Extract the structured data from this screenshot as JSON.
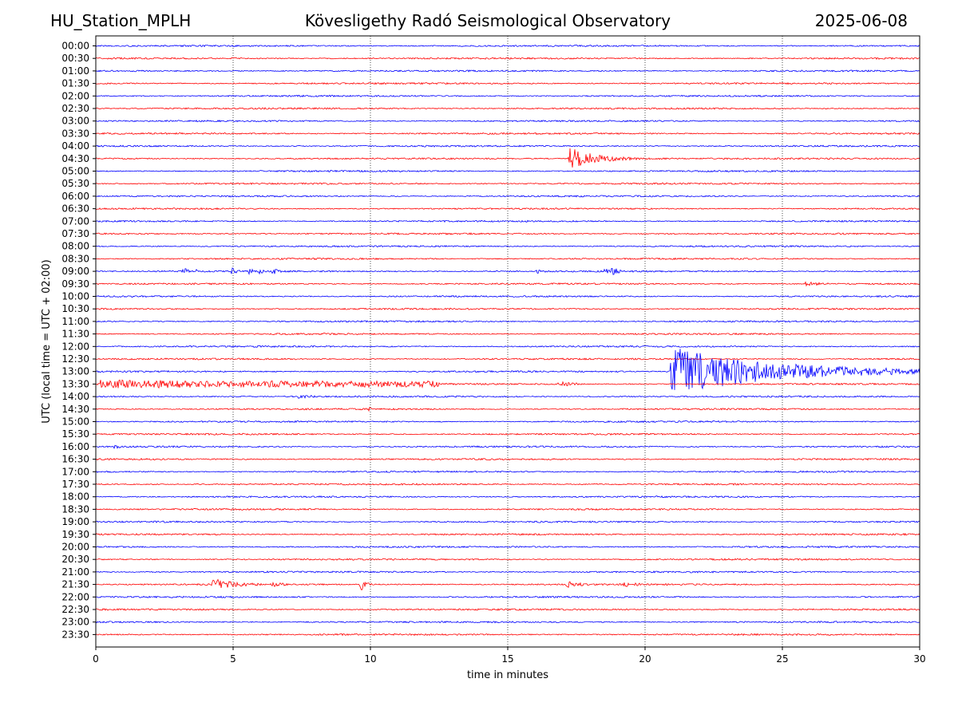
{
  "header": {
    "station": "HU_Station_MPLH",
    "title": "Kövesligethy Radó Seismological Observatory",
    "date": "2025-06-08"
  },
  "chart_data": {
    "type": "line",
    "subtype": "helicorder",
    "xlabel": "time in minutes",
    "ylabel": "UTC (local time = UTC + 02:00)",
    "xlim": [
      0,
      30
    ],
    "xticks": [
      0,
      5,
      10,
      15,
      20,
      25,
      30
    ],
    "grid_x": true,
    "trace_colors": [
      "#0000ff",
      "#ff0000"
    ],
    "rows": [
      {
        "label": "00:00",
        "events": []
      },
      {
        "label": "00:30",
        "events": []
      },
      {
        "label": "01:00",
        "events": []
      },
      {
        "label": "01:30",
        "events": []
      },
      {
        "label": "02:00",
        "events": []
      },
      {
        "label": "02:30",
        "events": []
      },
      {
        "label": "03:00",
        "events": []
      },
      {
        "label": "03:30",
        "events": []
      },
      {
        "label": "04:00",
        "events": []
      },
      {
        "label": "04:30",
        "events": [
          {
            "t": 17.2,
            "dur": 3.8,
            "amp": 1.9,
            "decay": 0.9
          }
        ]
      },
      {
        "label": "05:00",
        "events": []
      },
      {
        "label": "05:30",
        "events": []
      },
      {
        "label": "06:00",
        "events": []
      },
      {
        "label": "06:30",
        "events": []
      },
      {
        "label": "07:00",
        "events": []
      },
      {
        "label": "07:30",
        "events": []
      },
      {
        "label": "08:00",
        "events": []
      },
      {
        "label": "08:30",
        "events": []
      },
      {
        "label": "09:00",
        "events": [
          {
            "t": 3.15,
            "dur": 0.3,
            "amp": 0.9,
            "decay": 0.12
          },
          {
            "t": 3.55,
            "dur": 0.25,
            "amp": 0.6,
            "decay": 0.1
          },
          {
            "t": 4.9,
            "dur": 0.35,
            "amp": 0.9,
            "decay": 0.12
          },
          {
            "t": 5.55,
            "dur": 0.25,
            "amp": 0.8,
            "decay": 0.1
          },
          {
            "t": 5.9,
            "dur": 0.25,
            "amp": 0.8,
            "decay": 0.1
          },
          {
            "t": 6.4,
            "dur": 0.35,
            "amp": 0.9,
            "decay": 0.12
          },
          {
            "t": 16.0,
            "dur": 0.4,
            "amp": 0.7,
            "decay": 0.12
          },
          {
            "t": 18.5,
            "dur": 0.35,
            "amp": 0.9,
            "decay": 0.12
          },
          {
            "t": 18.75,
            "dur": 0.35,
            "amp": 1.6,
            "decay": 0.15
          }
        ]
      },
      {
        "label": "09:30",
        "events": [
          {
            "t": 25.8,
            "dur": 0.9,
            "amp": 0.35,
            "decay": 0.5
          }
        ]
      },
      {
        "label": "10:00",
        "events": []
      },
      {
        "label": "10:30",
        "events": []
      },
      {
        "label": "11:00",
        "events": []
      },
      {
        "label": "11:30",
        "events": []
      },
      {
        "label": "12:00",
        "events": []
      },
      {
        "label": "12:30",
        "events": []
      },
      {
        "label": "13:00",
        "events": [
          {
            "t": 20.9,
            "dur": 9.1,
            "amp": 4.0,
            "decay": 3.5
          }
        ]
      },
      {
        "label": "13:30",
        "events": [
          {
            "t": 0.0,
            "dur": 12.5,
            "amp": 0.55,
            "decay": 30.0
          },
          {
            "t": 16.8,
            "dur": 0.9,
            "amp": 0.4,
            "decay": 0.5
          }
        ]
      },
      {
        "label": "14:00",
        "events": [
          {
            "t": 7.3,
            "dur": 0.7,
            "amp": 0.3,
            "decay": 0.5
          }
        ]
      },
      {
        "label": "14:30",
        "events": [
          {
            "t": 9.9,
            "dur": 0.2,
            "amp": 0.5,
            "decay": 0.08
          }
        ]
      },
      {
        "label": "15:00",
        "events": []
      },
      {
        "label": "15:30",
        "events": []
      },
      {
        "label": "16:00",
        "events": [
          {
            "t": 0.5,
            "dur": 0.5,
            "amp": 0.3,
            "decay": 0.3
          }
        ]
      },
      {
        "label": "16:30",
        "events": []
      },
      {
        "label": "17:00",
        "events": []
      },
      {
        "label": "17:30",
        "events": []
      },
      {
        "label": "18:00",
        "events": []
      },
      {
        "label": "18:30",
        "events": []
      },
      {
        "label": "19:00",
        "events": []
      },
      {
        "label": "19:30",
        "events": []
      },
      {
        "label": "20:00",
        "events": []
      },
      {
        "label": "20:30",
        "events": []
      },
      {
        "label": "21:00",
        "events": []
      },
      {
        "label": "21:30",
        "events": [
          {
            "t": 4.2,
            "dur": 1.8,
            "amp": 1.1,
            "decay": 0.6
          },
          {
            "t": 6.4,
            "dur": 0.6,
            "amp": 0.3,
            "decay": 0.4
          },
          {
            "t": 9.6,
            "dur": 0.5,
            "amp": 1.5,
            "decay": 0.15
          },
          {
            "t": 17.1,
            "dur": 0.7,
            "amp": 0.5,
            "decay": 0.4
          },
          {
            "t": 19.2,
            "dur": 0.6,
            "amp": 0.35,
            "decay": 0.4
          }
        ]
      },
      {
        "label": "22:00",
        "events": []
      },
      {
        "label": "22:30",
        "events": []
      },
      {
        "label": "23:00",
        "events": []
      },
      {
        "label": "23:30",
        "events": []
      }
    ]
  }
}
